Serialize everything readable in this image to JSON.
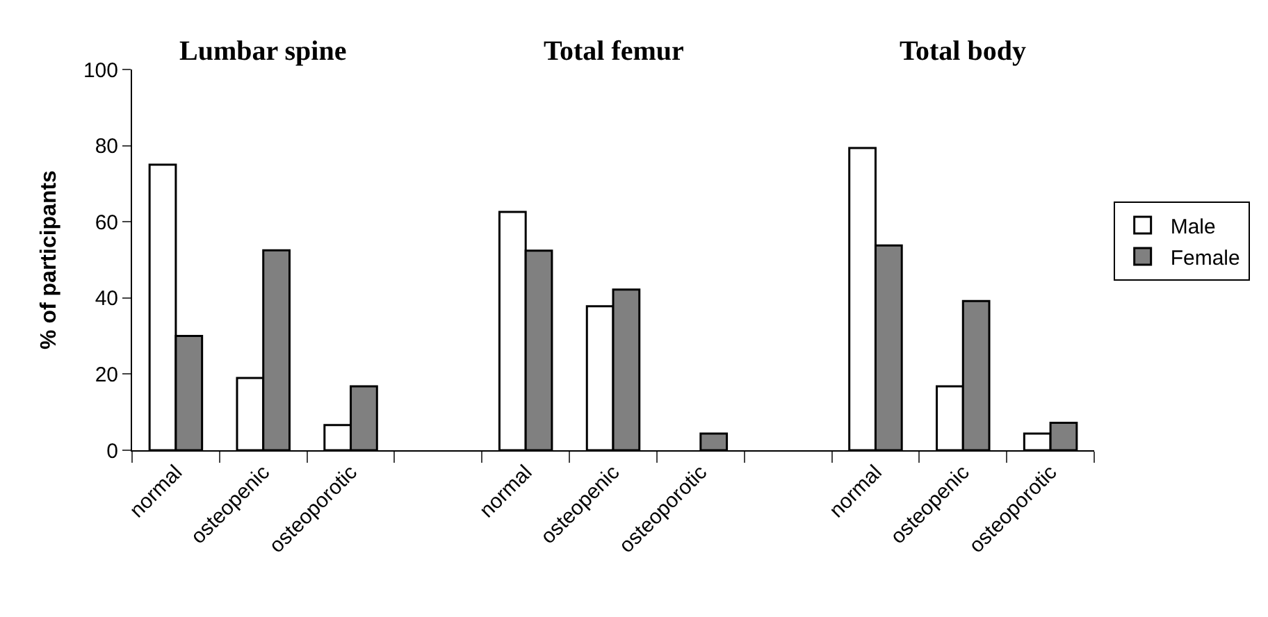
{
  "chart_data": {
    "type": "bar",
    "categories": [
      "normal",
      "osteopenic",
      "osteoporotic",
      null,
      "normal",
      "osteopenic",
      "osteoporotic",
      null,
      "normal",
      "osteopenic",
      "osteoporotic"
    ],
    "series": [
      {
        "name": "Male",
        "color": "#ffffff",
        "values": [
          75,
          19,
          6.6,
          null,
          62.6,
          37.8,
          null,
          null,
          79.4,
          16.8,
          4.4
        ]
      },
      {
        "name": "Female",
        "color": "#808080",
        "values": [
          30,
          52.5,
          16.8,
          null,
          52.4,
          42.2,
          4.4,
          null,
          53.8,
          39.2,
          7.2
        ]
      }
    ],
    "ylabel": "% of participants",
    "annotations": [
      "Lumbar spine",
      "Total femur",
      "Total body"
    ],
    "ylim": [
      0,
      100
    ],
    "yticks": [
      0,
      20,
      40,
      60,
      80,
      100
    ],
    "legend": "right"
  }
}
